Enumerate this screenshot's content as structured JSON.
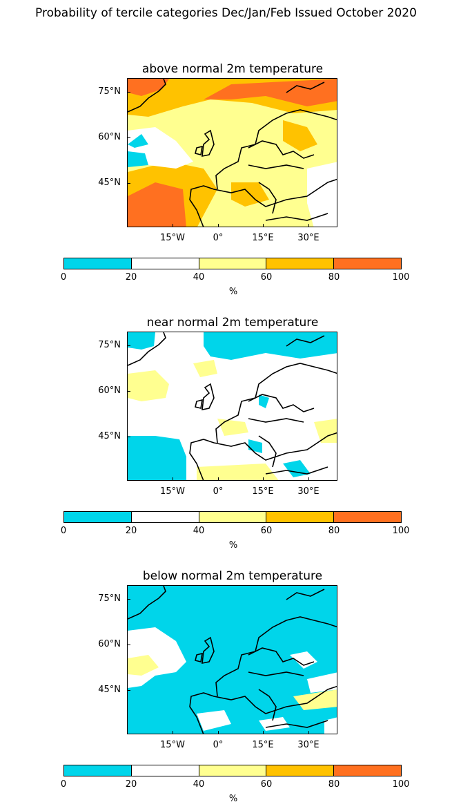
{
  "figure": {
    "title": "Probability of tercile categories Dec/Jan/Feb Issued October 2020"
  },
  "axes_labels": {
    "lat": [
      "75°N",
      "60°N",
      "45°N"
    ],
    "lon": [
      "15°W",
      "0°",
      "15°E",
      "30°E"
    ]
  },
  "colorbar": {
    "ticks": [
      "0",
      "20",
      "40",
      "60",
      "80",
      "100"
    ],
    "label": "%",
    "colors": [
      "#00d5ea",
      "#ffffff",
      "#ffff90",
      "#ffc200",
      "#ff7020"
    ]
  },
  "panels": [
    {
      "title": "above normal 2m temperature",
      "dominant": "mixed-warm"
    },
    {
      "title": "near normal 2m temperature",
      "dominant": "white"
    },
    {
      "title": "below normal 2m temperature",
      "dominant": "cyan"
    }
  ]
}
